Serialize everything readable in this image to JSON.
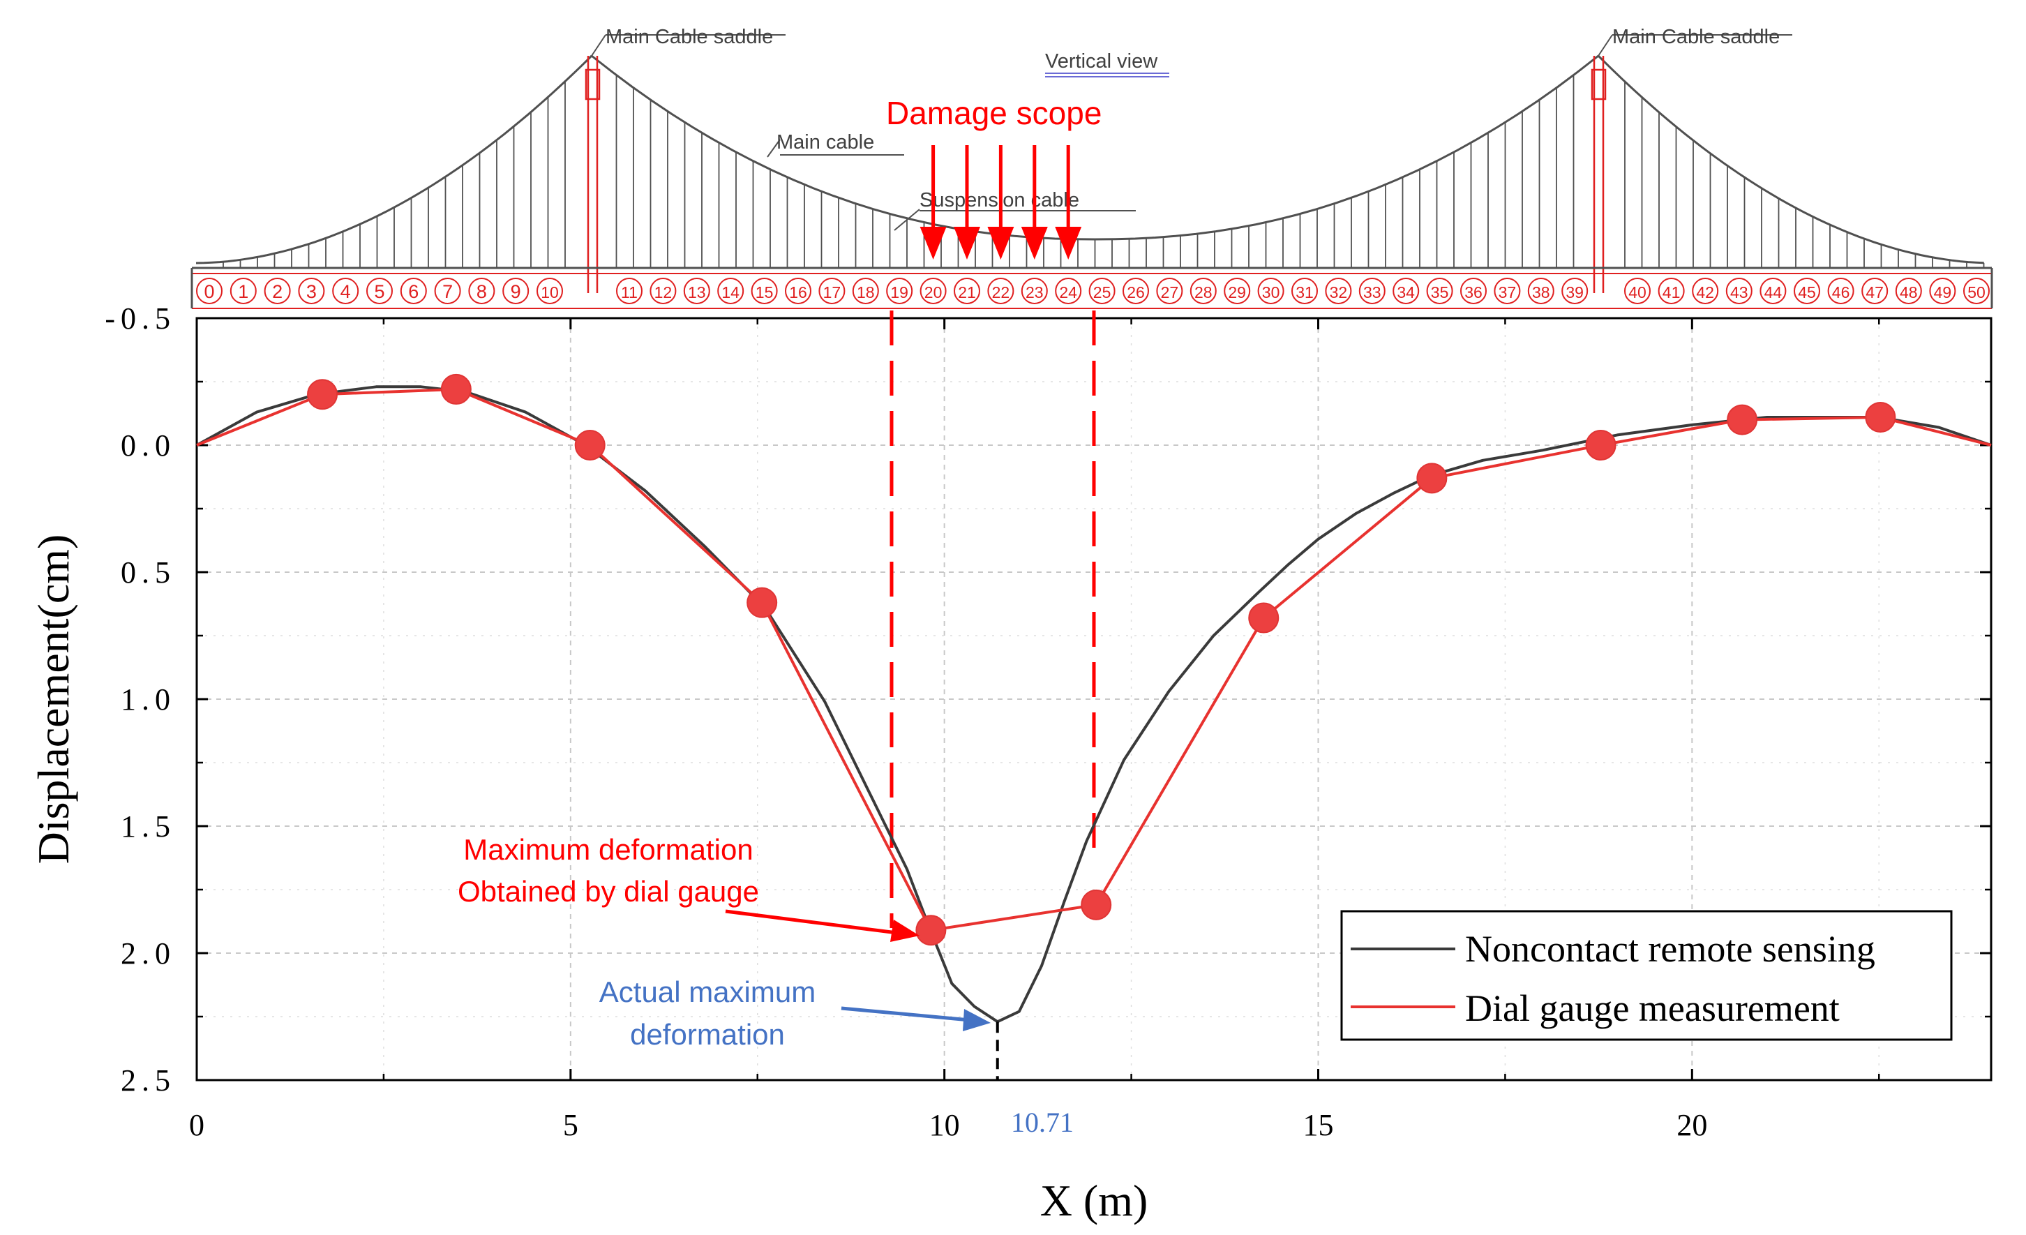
{
  "bridge": {
    "saddle_label_left": "Main Cable saddle",
    "saddle_label_right": "Main Cable saddle",
    "view_label": "Vertical view",
    "main_cable_label": "Main cable",
    "suspension_cable_label": "Suspension cable",
    "damage_scope_label": "Damage scope",
    "hanger_numbers": [
      "0",
      "1",
      "2",
      "3",
      "4",
      "5",
      "6",
      "7",
      "8",
      "9",
      "10",
      "11",
      "12",
      "13",
      "14",
      "15",
      "16",
      "17",
      "18",
      "19",
      "20",
      "21",
      "22",
      "23",
      "24",
      "25",
      "26",
      "27",
      "28",
      "29",
      "30",
      "31",
      "32",
      "33",
      "34",
      "35",
      "36",
      "37",
      "38",
      "39",
      "40",
      "41",
      "42",
      "43",
      "44",
      "45",
      "46",
      "47",
      "48",
      "49",
      "50"
    ],
    "damage_hangers": [
      20,
      21,
      22,
      23,
      24
    ]
  },
  "annotations": {
    "dial_max_line1": "Maximum deformation",
    "dial_max_line2": "Obtained by dial gauge",
    "actual_max_line1": "Actual maximum",
    "actual_max_line2": "deformation",
    "actual_max_x_label": "10.71"
  },
  "colors": {
    "noncontact": "#3a3a3a",
    "dial": "#e8322f",
    "marker": "#ec4040",
    "annotation_red": "#ff0000",
    "annotation_blue": "#4472c4",
    "grid": "#c8c8c8",
    "bridge_line": "#505050",
    "bridge_red": "#e02020"
  },
  "chart_data": {
    "type": "line",
    "title": "",
    "xlabel": "X (m)",
    "ylabel": "Displacement(cm)",
    "xlim": [
      0,
      24
    ],
    "ylim": [
      -0.5,
      2.5
    ],
    "y_inverted": true,
    "xticks": [
      0,
      5,
      10,
      15,
      20
    ],
    "xtick_labels": [
      "0",
      "5",
      "10",
      "15",
      "20"
    ],
    "yticks": [
      -0.5,
      0.0,
      0.5,
      1.0,
      1.5,
      2.0,
      2.5
    ],
    "ytick_labels": [
      "-0.5",
      "0.0",
      "0.5",
      "1.0",
      "1.5",
      "2.0",
      "2.5"
    ],
    "grid": true,
    "legend_position": "bottom-right",
    "series": [
      {
        "name": "Noncontact remote sensing",
        "x": [
          0,
          0.8,
          1.6,
          2.4,
          3.0,
          3.6,
          4.4,
          5.2,
          6.0,
          6.8,
          7.6,
          8.4,
          9.0,
          9.5,
          9.8,
          10.1,
          10.4,
          10.71,
          11.0,
          11.3,
          11.6,
          11.9,
          12.4,
          13.0,
          13.6,
          14.2,
          14.6,
          15.0,
          15.5,
          16.0,
          16.5,
          17.2,
          18.0,
          19.0,
          20.0,
          21.0,
          21.5,
          22.5,
          23.3,
          24.0
        ],
        "y": [
          0.0,
          -0.13,
          -0.2,
          -0.23,
          -0.23,
          -0.21,
          -0.13,
          0.0,
          0.18,
          0.4,
          0.64,
          1.01,
          1.37,
          1.67,
          1.9,
          2.12,
          2.21,
          2.27,
          2.23,
          2.05,
          1.8,
          1.56,
          1.24,
          0.97,
          0.75,
          0.58,
          0.47,
          0.37,
          0.27,
          0.19,
          0.12,
          0.06,
          0.02,
          -0.04,
          -0.08,
          -0.11,
          -0.11,
          -0.11,
          -0.07,
          0.0
        ]
      },
      {
        "name": "Dial gauge measurement",
        "x": [
          0,
          1.68,
          3.47,
          5.26,
          7.56,
          9.82,
          12.03,
          14.27,
          16.52,
          18.78,
          20.67,
          22.52,
          24.0
        ],
        "y": [
          0.0,
          -0.2,
          -0.22,
          0.0,
          0.62,
          1.91,
          1.81,
          0.68,
          0.13,
          0.0,
          -0.1,
          -0.11,
          0.0
        ],
        "markers": [
          false,
          true,
          true,
          true,
          true,
          true,
          true,
          true,
          true,
          true,
          true,
          true,
          false
        ]
      }
    ]
  }
}
